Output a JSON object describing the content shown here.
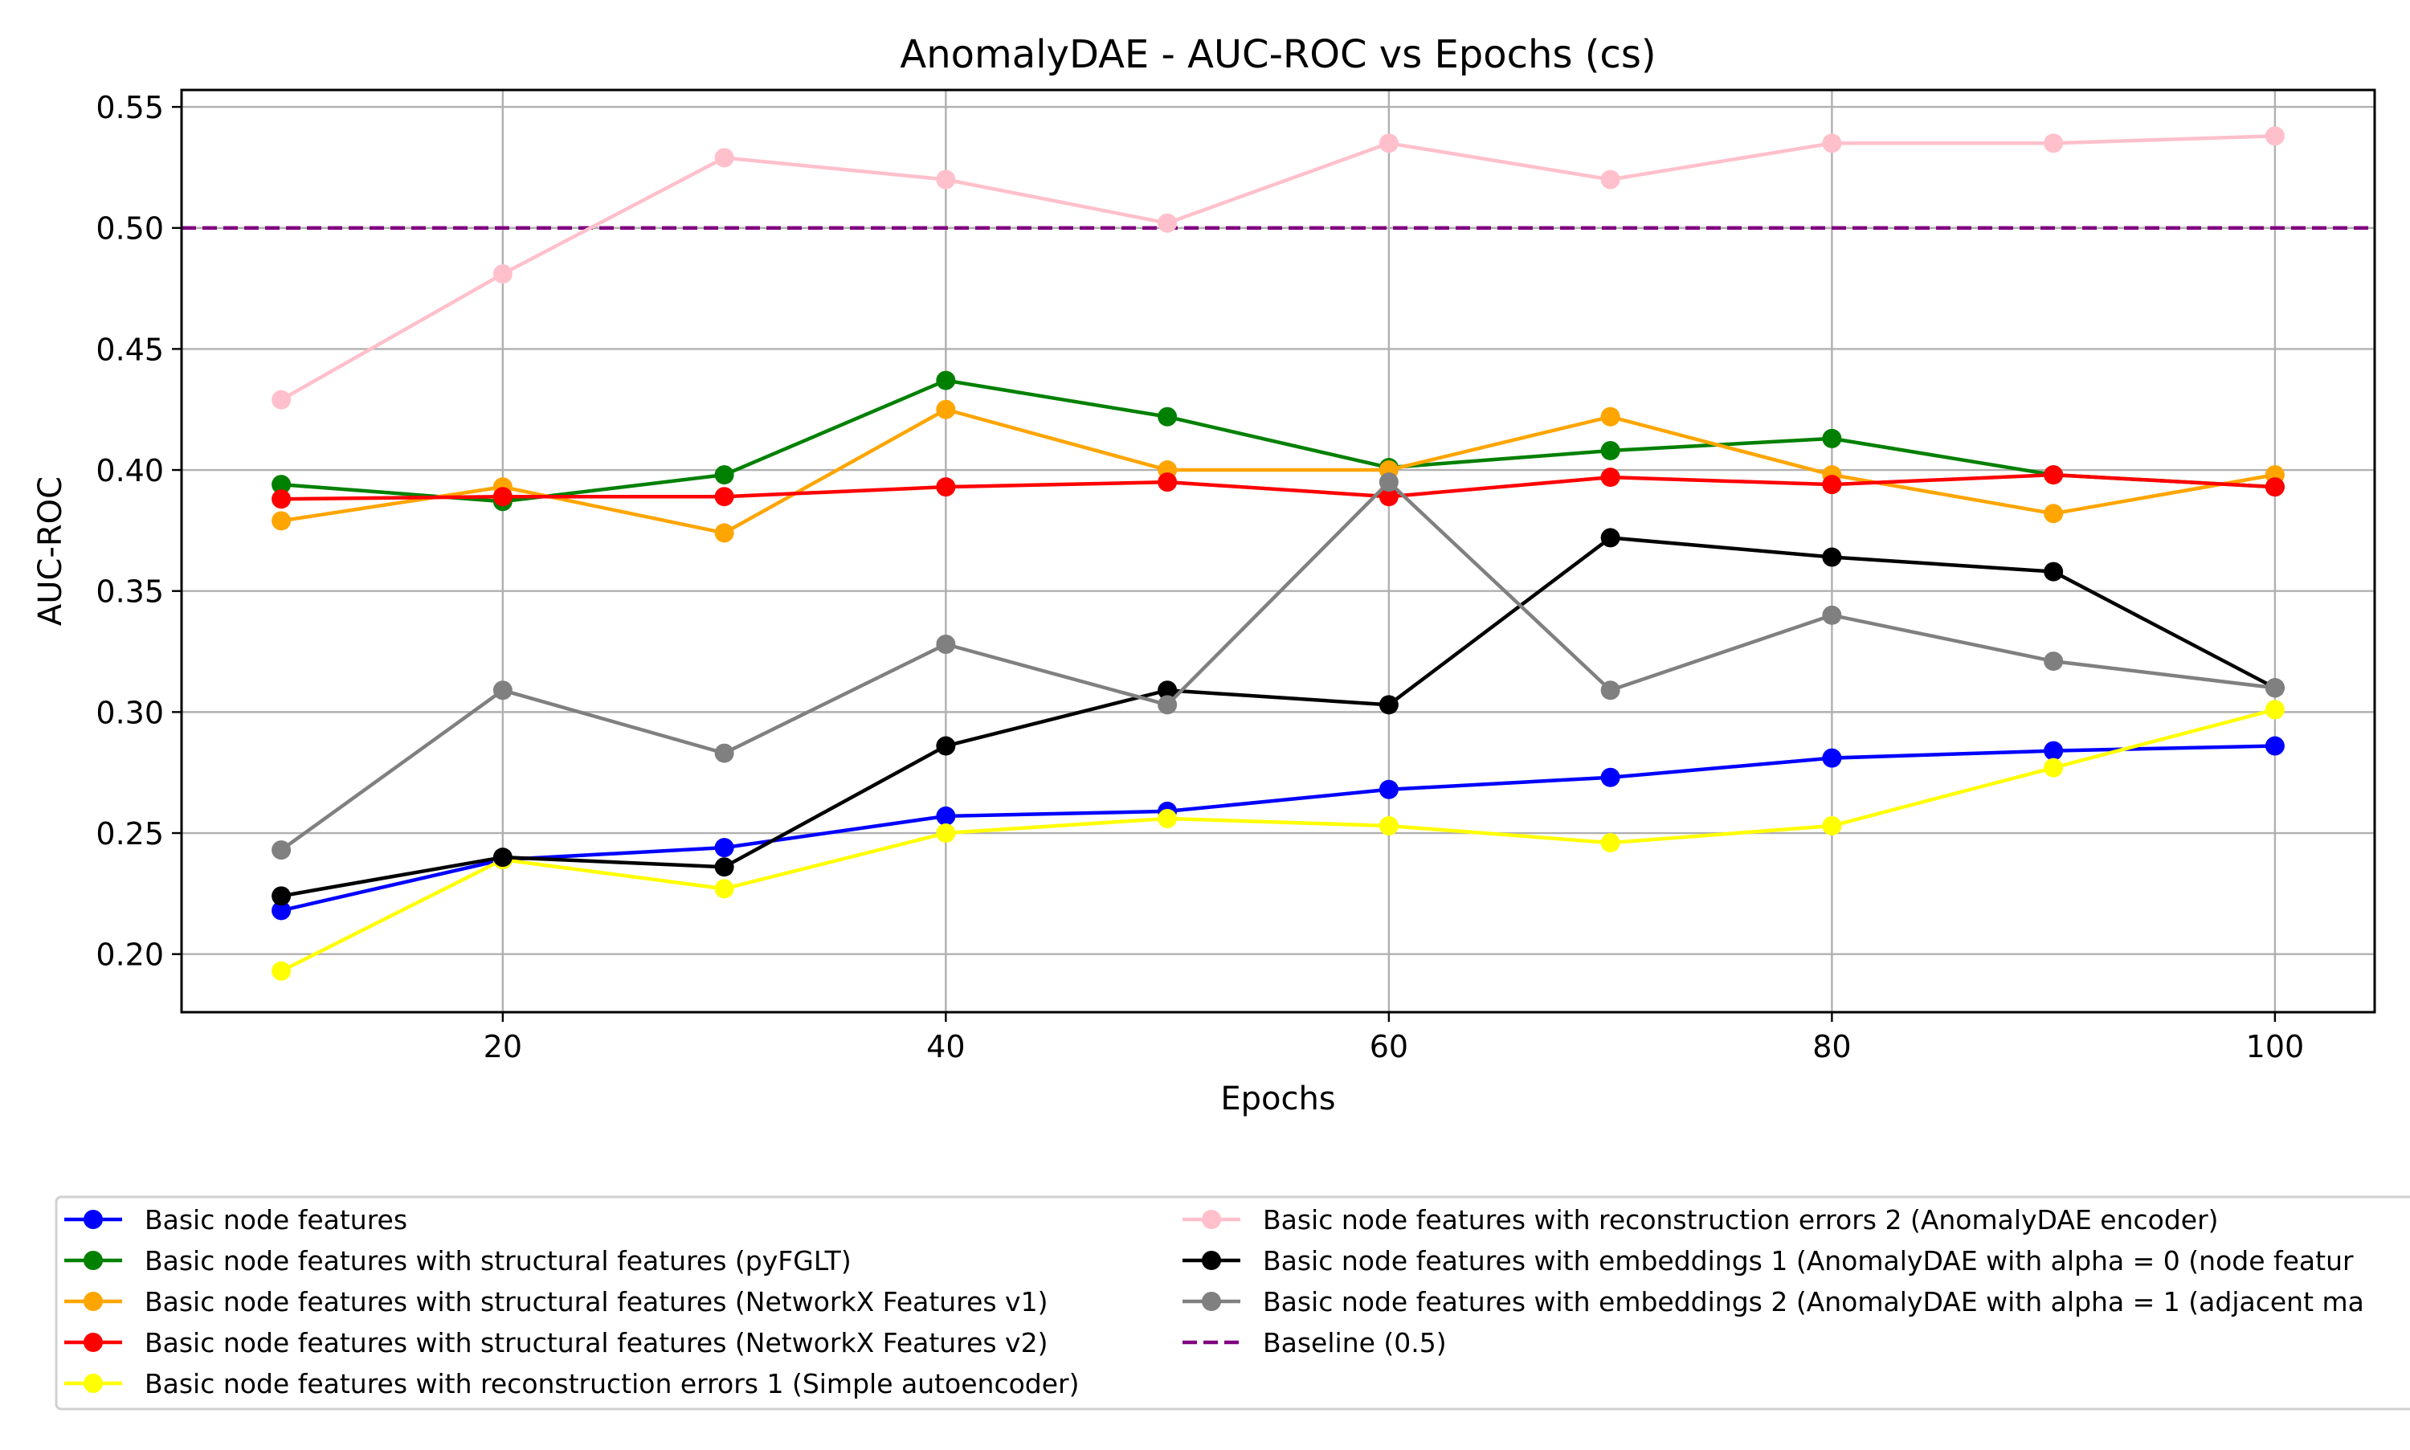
{
  "chart_data": {
    "type": "line",
    "title": "AnomalyDAE - AUC-ROC vs Epochs (cs)",
    "xlabel": "Epochs",
    "ylabel": "AUC-ROC",
    "xlim": [
      5.5,
      104.5
    ],
    "ylim": [
      0.176,
      0.557
    ],
    "x": [
      10,
      20,
      30,
      40,
      50,
      60,
      70,
      80,
      90,
      100
    ],
    "xticks": [
      20,
      40,
      60,
      80,
      100
    ],
    "xtick_labels": [
      "20",
      "40",
      "60",
      "80",
      "100"
    ],
    "yticks": [
      0.2,
      0.25,
      0.3,
      0.35,
      0.4,
      0.45,
      0.5,
      0.55
    ],
    "ytick_labels": [
      "0.20",
      "0.25",
      "0.30",
      "0.35",
      "0.40",
      "0.45",
      "0.50",
      "0.55"
    ],
    "grid": true,
    "legend_position": "bottom",
    "series": [
      {
        "name": "Basic node features",
        "color": "#0000ff",
        "values": [
          0.218,
          0.239,
          0.244,
          0.257,
          0.259,
          0.268,
          0.273,
          0.281,
          0.284,
          0.286
        ]
      },
      {
        "name": "Basic node features with structural features (pyFGLT)",
        "color": "#008000",
        "values": [
          0.394,
          0.387,
          0.398,
          0.437,
          0.422,
          0.401,
          0.408,
          0.413,
          0.398,
          0.393
        ]
      },
      {
        "name": "Basic node features with structural features (NetworkX Features v1)",
        "color": "#ffa500",
        "values": [
          0.379,
          0.393,
          0.374,
          0.425,
          0.4,
          0.4,
          0.422,
          0.398,
          0.382,
          0.398
        ]
      },
      {
        "name": "Basic node features with structural features (NetworkX Features v2)",
        "color": "#ff0000",
        "values": [
          0.388,
          0.389,
          0.389,
          0.393,
          0.395,
          0.389,
          0.397,
          0.394,
          0.398,
          0.393
        ]
      },
      {
        "name": "Basic node features with reconstruction errors 1 (Simple autoencoder)",
        "color": "#ffff00",
        "values": [
          0.193,
          0.239,
          0.227,
          0.25,
          0.256,
          0.253,
          0.246,
          0.253,
          0.277,
          0.301
        ]
      },
      {
        "name": "Basic node features with reconstruction errors 2 (AnomalyDAE encoder)",
        "color": "#ffc0cb",
        "values": [
          0.429,
          0.481,
          0.529,
          0.52,
          0.502,
          0.535,
          0.52,
          0.535,
          0.535,
          0.538
        ]
      },
      {
        "name": "Basic node features with embeddings 1 (AnomalyDAE with alpha = 0 (node featur",
        "color": "#000000",
        "values": [
          0.224,
          0.24,
          0.236,
          0.286,
          0.309,
          0.303,
          0.372,
          0.364,
          0.358,
          0.31
        ]
      },
      {
        "name": "Basic node features with embeddings 2 (AnomalyDAE with alpha = 1 (adjacent ma",
        "color": "#808080",
        "values": [
          0.243,
          0.309,
          0.283,
          0.328,
          0.303,
          0.395,
          0.309,
          0.34,
          0.321,
          0.31
        ]
      }
    ],
    "baseline": {
      "name": "Baseline (0.5)",
      "value": 0.5,
      "color": "#800080",
      "style": "dashed"
    }
  }
}
